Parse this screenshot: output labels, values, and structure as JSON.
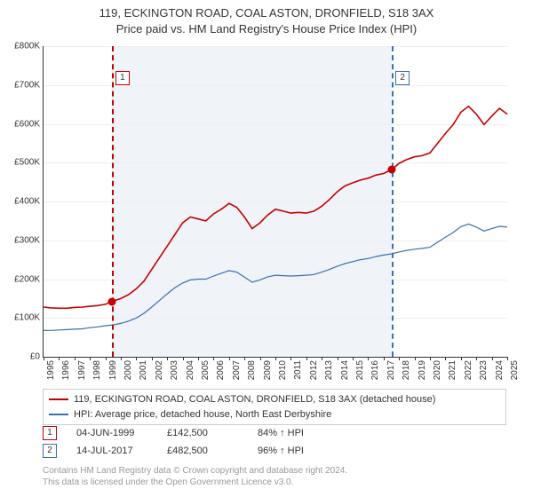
{
  "title_line1": "119, ECKINGTON ROAD, COAL ASTON, DRONFIELD, S18 3AX",
  "title_line2": "Price paid vs. HM Land Registry's House Price Index (HPI)",
  "chart": {
    "type": "line",
    "background_color": "#ffffff",
    "band_color": "#f0f4f9",
    "grid_color": "#eeeeee",
    "axis_color": "#333333",
    "label_fontsize": 10,
    "xmin": 1995,
    "xmax": 2025,
    "band_start_year": 1999.42,
    "band_end_year": 2017.54,
    "ymin": 0,
    "ymax": 800000,
    "ytick_step": 100000,
    "yticks": [
      "£0",
      "£100K",
      "£200K",
      "£300K",
      "£400K",
      "£500K",
      "£600K",
      "£700K",
      "£800K"
    ],
    "xticks": [
      1995,
      1996,
      1997,
      1998,
      1999,
      2000,
      2001,
      2002,
      2003,
      2004,
      2005,
      2006,
      2007,
      2008,
      2009,
      2010,
      2011,
      2012,
      2013,
      2014,
      2015,
      2016,
      2017,
      2018,
      2019,
      2020,
      2021,
      2022,
      2023,
      2024,
      2025
    ],
    "series": [
      {
        "name": "property",
        "color": "#c40000",
        "width": 1.6,
        "legend": "119, ECKINGTON ROAD, COAL ASTON, DRONFIELD, S18 3AX (detached house)",
        "data": [
          [
            1995,
            128000
          ],
          [
            1995.5,
            126000
          ],
          [
            1996,
            125000
          ],
          [
            1996.5,
            125000
          ],
          [
            1997,
            127000
          ],
          [
            1997.5,
            128000
          ],
          [
            1998,
            130000
          ],
          [
            1998.5,
            132000
          ],
          [
            1999,
            135000
          ],
          [
            1999.42,
            142500
          ],
          [
            2000,
            150000
          ],
          [
            2000.5,
            160000
          ],
          [
            2001,
            175000
          ],
          [
            2001.5,
            195000
          ],
          [
            2002,
            225000
          ],
          [
            2002.5,
            255000
          ],
          [
            2003,
            285000
          ],
          [
            2003.5,
            315000
          ],
          [
            2004,
            345000
          ],
          [
            2004.5,
            360000
          ],
          [
            2005,
            355000
          ],
          [
            2005.5,
            350000
          ],
          [
            2006,
            368000
          ],
          [
            2006.5,
            380000
          ],
          [
            2007,
            395000
          ],
          [
            2007.5,
            385000
          ],
          [
            2008,
            360000
          ],
          [
            2008.5,
            330000
          ],
          [
            2009,
            345000
          ],
          [
            2009.5,
            365000
          ],
          [
            2010,
            380000
          ],
          [
            2010.5,
            375000
          ],
          [
            2011,
            370000
          ],
          [
            2011.5,
            372000
          ],
          [
            2012,
            370000
          ],
          [
            2012.5,
            375000
          ],
          [
            2013,
            388000
          ],
          [
            2013.5,
            405000
          ],
          [
            2014,
            425000
          ],
          [
            2014.5,
            440000
          ],
          [
            2015,
            448000
          ],
          [
            2015.5,
            455000
          ],
          [
            2016,
            460000
          ],
          [
            2016.5,
            468000
          ],
          [
            2017,
            472000
          ],
          [
            2017.54,
            482500
          ],
          [
            2018,
            498000
          ],
          [
            2018.5,
            508000
          ],
          [
            2019,
            515000
          ],
          [
            2019.5,
            518000
          ],
          [
            2020,
            525000
          ],
          [
            2020.5,
            550000
          ],
          [
            2021,
            575000
          ],
          [
            2021.5,
            598000
          ],
          [
            2022,
            630000
          ],
          [
            2022.5,
            645000
          ],
          [
            2023,
            625000
          ],
          [
            2023.5,
            598000
          ],
          [
            2024,
            620000
          ],
          [
            2024.5,
            640000
          ],
          [
            2025,
            625000
          ]
        ]
      },
      {
        "name": "hpi",
        "color": "#3a6fb0",
        "width": 1.2,
        "legend": "HPI: Average price, detached house, North East Derbyshire",
        "data": [
          [
            1995,
            68000
          ],
          [
            1995.5,
            68000
          ],
          [
            1996,
            69000
          ],
          [
            1996.5,
            70000
          ],
          [
            1997,
            71000
          ],
          [
            1997.5,
            72000
          ],
          [
            1998,
            75000
          ],
          [
            1998.5,
            77000
          ],
          [
            1999,
            80000
          ],
          [
            1999.5,
            82000
          ],
          [
            2000,
            86000
          ],
          [
            2000.5,
            92000
          ],
          [
            2001,
            100000
          ],
          [
            2001.5,
            112000
          ],
          [
            2002,
            128000
          ],
          [
            2002.5,
            145000
          ],
          [
            2003,
            162000
          ],
          [
            2003.5,
            178000
          ],
          [
            2004,
            190000
          ],
          [
            2004.5,
            198000
          ],
          [
            2005,
            200000
          ],
          [
            2005.5,
            200000
          ],
          [
            2006,
            208000
          ],
          [
            2006.5,
            215000
          ],
          [
            2007,
            222000
          ],
          [
            2007.5,
            218000
          ],
          [
            2008,
            205000
          ],
          [
            2008.5,
            192000
          ],
          [
            2009,
            198000
          ],
          [
            2009.5,
            206000
          ],
          [
            2010,
            210000
          ],
          [
            2010.5,
            209000
          ],
          [
            2011,
            208000
          ],
          [
            2011.5,
            209000
          ],
          [
            2012,
            210000
          ],
          [
            2012.5,
            212000
          ],
          [
            2013,
            218000
          ],
          [
            2013.5,
            225000
          ],
          [
            2014,
            233000
          ],
          [
            2014.5,
            240000
          ],
          [
            2015,
            245000
          ],
          [
            2015.5,
            250000
          ],
          [
            2016,
            253000
          ],
          [
            2016.5,
            258000
          ],
          [
            2017,
            262000
          ],
          [
            2017.5,
            265000
          ],
          [
            2018,
            270000
          ],
          [
            2018.5,
            274000
          ],
          [
            2019,
            277000
          ],
          [
            2019.5,
            279000
          ],
          [
            2020,
            282000
          ],
          [
            2020.5,
            295000
          ],
          [
            2021,
            308000
          ],
          [
            2021.5,
            320000
          ],
          [
            2022,
            335000
          ],
          [
            2022.5,
            342000
          ],
          [
            2023,
            334000
          ],
          [
            2023.5,
            324000
          ],
          [
            2024,
            330000
          ],
          [
            2024.5,
            336000
          ],
          [
            2025,
            334000
          ]
        ]
      }
    ],
    "markers": [
      {
        "id": "1",
        "year": 1999.42,
        "value": 142500,
        "line_color": "#c40000",
        "dot_color": "#c40000",
        "box_top": 28
      },
      {
        "id": "2",
        "year": 2017.54,
        "value": 482500,
        "line_color": "#3a6fb0",
        "dot_color": "#c40000",
        "box_top": 28
      }
    ]
  },
  "events": [
    {
      "id": "1",
      "color": "#c40000",
      "date": "04-JUN-1999",
      "price": "£142,500",
      "pct": "84% ↑ HPI"
    },
    {
      "id": "2",
      "color": "#3a6fb0",
      "date": "14-JUL-2017",
      "price": "£482,500",
      "pct": "96% ↑ HPI"
    }
  ],
  "footer_line1": "Contains HM Land Registry data © Crown copyright and database right 2024.",
  "footer_line2": "This data is licensed under the Open Government Licence v3.0."
}
